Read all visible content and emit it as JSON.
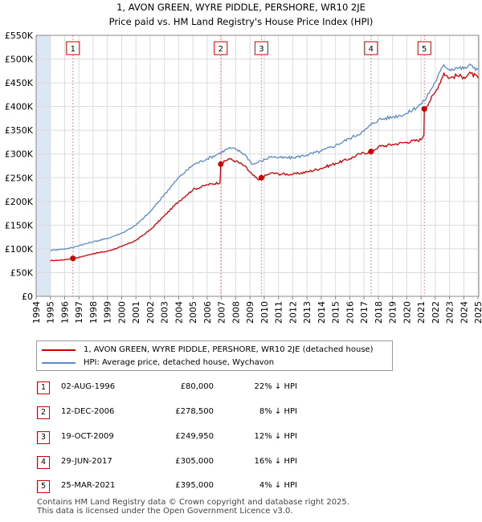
{
  "header": {
    "title_line1": "1, AVON GREEN, WYRE PIDDLE, PERSHORE, WR10 2JE",
    "title_line2": "Price paid vs. HM Land Registry's House Price Index (HPI)"
  },
  "colors": {
    "property": "#cc0000",
    "hpi": "#5b8ac4",
    "shade": "#dde6f3",
    "grid": "#dcdcdc",
    "marker_line": "#e88a8a"
  },
  "chart_data": {
    "type": "line",
    "ylim": [
      0,
      550000
    ],
    "xlim": [
      1994.0,
      2025.05
    ],
    "y_ticks": [
      0,
      50000,
      100000,
      150000,
      200000,
      250000,
      300000,
      350000,
      400000,
      450000,
      500000,
      550000
    ],
    "y_tick_labels": [
      "£0",
      "£50K",
      "£100K",
      "£150K",
      "£200K",
      "£250K",
      "£300K",
      "£350K",
      "£400K",
      "£450K",
      "£500K",
      "£550K"
    ],
    "x_ticks": [
      1994,
      1995,
      1996,
      1997,
      1998,
      1999,
      2000,
      2001,
      2002,
      2003,
      2004,
      2005,
      2006,
      2007,
      2008,
      2009,
      2010,
      2011,
      2012,
      2013,
      2014,
      2015,
      2016,
      2017,
      2018,
      2019,
      2020,
      2021,
      2022,
      2023,
      2024,
      2025
    ],
    "data_start": 1995.0,
    "series": [
      {
        "name": "1, AVON GREEN, WYRE PIDDLE, PERSHORE, WR10 2JE (detached house)",
        "color": "#cc0000",
        "points": [
          [
            1995.0,
            75000
          ],
          [
            1996.0,
            77000
          ],
          [
            1996.58,
            80000
          ],
          [
            1997.0,
            82000
          ],
          [
            1998.0,
            90000
          ],
          [
            1999.0,
            95000
          ],
          [
            2000.0,
            105000
          ],
          [
            2001.0,
            118000
          ],
          [
            2002.0,
            140000
          ],
          [
            2003.0,
            170000
          ],
          [
            2004.0,
            200000
          ],
          [
            2005.0,
            225000
          ],
          [
            2006.0,
            235000
          ],
          [
            2006.9,
            240000
          ],
          [
            2006.95,
            278500
          ],
          [
            2007.5,
            290000
          ],
          [
            2008.0,
            285000
          ],
          [
            2008.6,
            275000
          ],
          [
            2009.2,
            255000
          ],
          [
            2009.6,
            245000
          ],
          [
            2009.8,
            249950
          ],
          [
            2010.5,
            260000
          ],
          [
            2011.0,
            258000
          ],
          [
            2012.0,
            257000
          ],
          [
            2013.0,
            262000
          ],
          [
            2014.0,
            270000
          ],
          [
            2015.0,
            280000
          ],
          [
            2016.0,
            290000
          ],
          [
            2016.7,
            300000
          ],
          [
            2017.5,
            305000
          ],
          [
            2018.0,
            315000
          ],
          [
            2019.0,
            320000
          ],
          [
            2020.0,
            325000
          ],
          [
            2021.0,
            330000
          ],
          [
            2021.2,
            340000
          ],
          [
            2021.23,
            395000
          ],
          [
            2022.0,
            430000
          ],
          [
            2022.6,
            470000
          ],
          [
            2023.0,
            460000
          ],
          [
            2023.5,
            465000
          ],
          [
            2024.0,
            462000
          ],
          [
            2024.5,
            470000
          ],
          [
            2025.0,
            460000
          ]
        ]
      },
      {
        "name": "HPI: Average price, detached house, Wychavon",
        "color": "#5b8ac4",
        "points": [
          [
            1995.0,
            97000
          ],
          [
            1996.0,
            100000
          ],
          [
            1996.58,
            103000
          ],
          [
            1997.0,
            107000
          ],
          [
            1998.0,
            115000
          ],
          [
            1999.0,
            122000
          ],
          [
            2000.0,
            133000
          ],
          [
            2001.0,
            150000
          ],
          [
            2002.0,
            178000
          ],
          [
            2003.0,
            215000
          ],
          [
            2004.0,
            250000
          ],
          [
            2005.0,
            277000
          ],
          [
            2006.0,
            290000
          ],
          [
            2006.9,
            302000
          ],
          [
            2007.5,
            312000
          ],
          [
            2008.0,
            310000
          ],
          [
            2008.6,
            300000
          ],
          [
            2009.2,
            278000
          ],
          [
            2009.8,
            285000
          ],
          [
            2010.5,
            295000
          ],
          [
            2011.0,
            292000
          ],
          [
            2012.0,
            292000
          ],
          [
            2013.0,
            298000
          ],
          [
            2014.0,
            306000
          ],
          [
            2015.0,
            318000
          ],
          [
            2016.0,
            333000
          ],
          [
            2017.0,
            348000
          ],
          [
            2017.5,
            362000
          ],
          [
            2018.0,
            372000
          ],
          [
            2019.0,
            378000
          ],
          [
            2020.0,
            385000
          ],
          [
            2021.0,
            405000
          ],
          [
            2021.23,
            412000
          ],
          [
            2022.0,
            452000
          ],
          [
            2022.6,
            488000
          ],
          [
            2023.0,
            478000
          ],
          [
            2023.5,
            482000
          ],
          [
            2024.0,
            480000
          ],
          [
            2024.5,
            487000
          ],
          [
            2025.0,
            478000
          ]
        ]
      }
    ],
    "sales": [
      {
        "num": "1",
        "x": 1996.58,
        "y": 80000
      },
      {
        "num": "2",
        "x": 2006.95,
        "y": 278500
      },
      {
        "num": "3",
        "x": 2009.8,
        "y": 249950
      },
      {
        "num": "4",
        "x": 2017.49,
        "y": 305000
      },
      {
        "num": "5",
        "x": 2021.23,
        "y": 395000
      }
    ]
  },
  "legend": {
    "property_label": "1, AVON GREEN, WYRE PIDDLE, PERSHORE, WR10 2JE (detached house)",
    "hpi_label": "HPI: Average price, detached house, Wychavon"
  },
  "transactions": [
    {
      "num": "1",
      "date": "02-AUG-1996",
      "price": "£80,000",
      "hpi": "22% ↓ HPI"
    },
    {
      "num": "2",
      "date": "12-DEC-2006",
      "price": "£278,500",
      "hpi": "8% ↓ HPI"
    },
    {
      "num": "3",
      "date": "19-OCT-2009",
      "price": "£249,950",
      "hpi": "12% ↓ HPI"
    },
    {
      "num": "4",
      "date": "29-JUN-2017",
      "price": "£305,000",
      "hpi": "16% ↓ HPI"
    },
    {
      "num": "5",
      "date": "25-MAR-2021",
      "price": "£395,000",
      "hpi": "4% ↓ HPI"
    }
  ],
  "footer": {
    "line1": "Contains HM Land Registry data © Crown copyright and database right 2025.",
    "line2": "This data is licensed under the Open Government Licence v3.0."
  }
}
